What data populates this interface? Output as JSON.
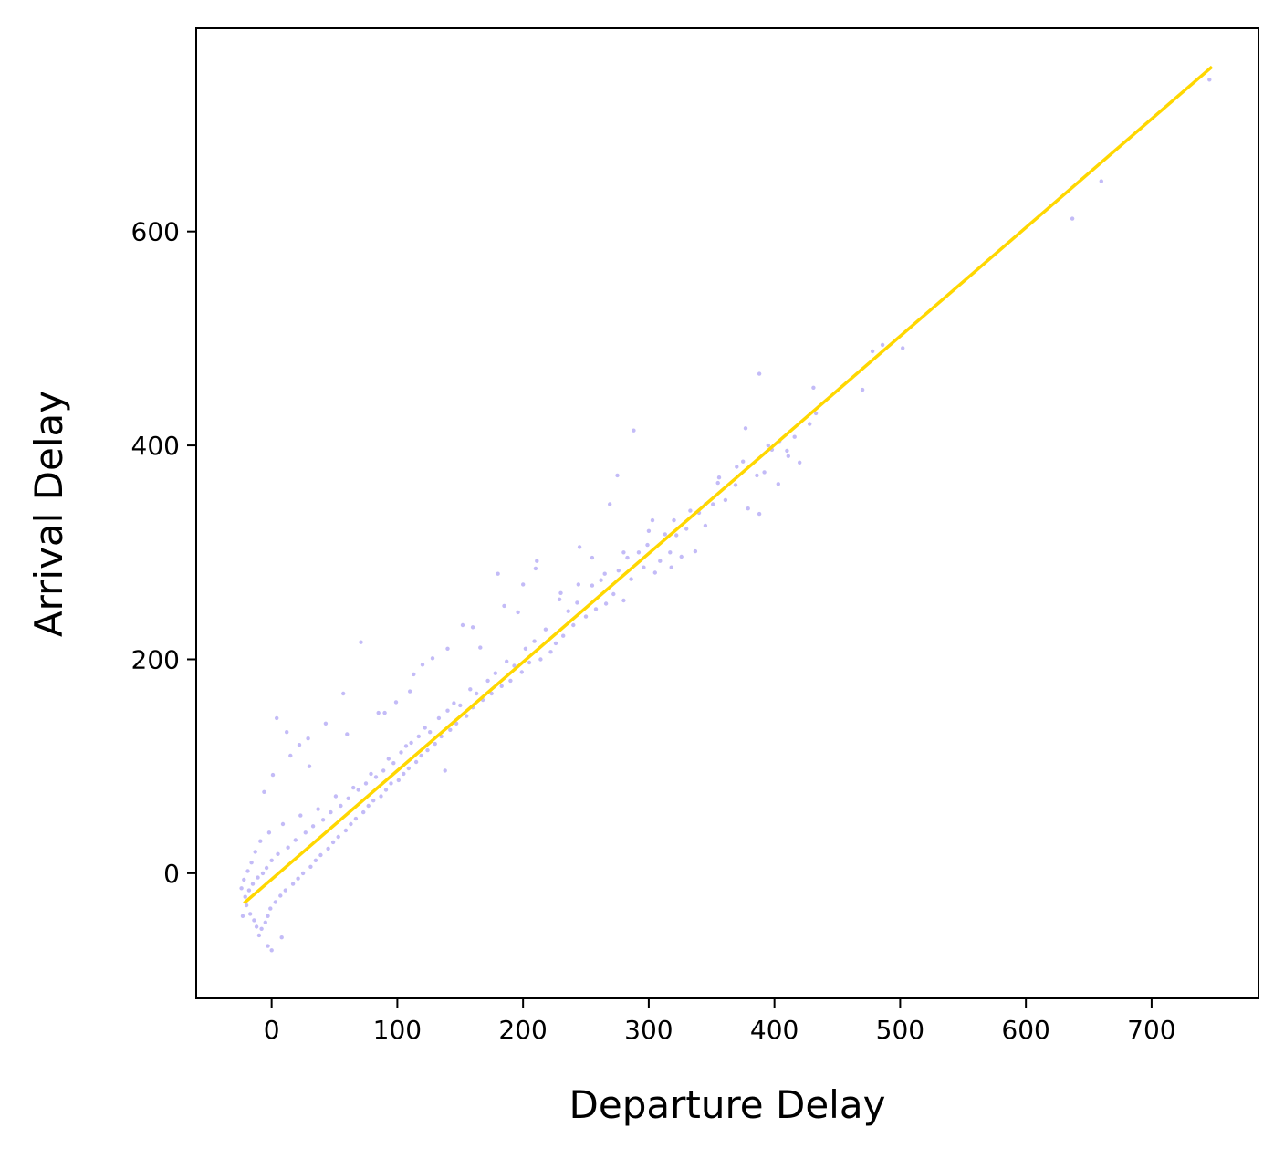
{
  "colors": {
    "background": "#ffffff",
    "axes": "#000000",
    "points": "#7b68ee",
    "fit_line": "#ffd700"
  },
  "chart_data": {
    "type": "scatter",
    "title": "",
    "xlabel": "Departure Delay",
    "ylabel": "Arrival Delay",
    "xlim": [
      -60,
      785
    ],
    "ylim": [
      -117,
      790
    ],
    "xticks": [
      0,
      100,
      200,
      300,
      400,
      500,
      600,
      700
    ],
    "yticks": [
      0,
      200,
      400,
      600
    ],
    "xtick_labels": [
      "0",
      "100",
      "200",
      "300",
      "400",
      "500",
      "600",
      "700"
    ],
    "ytick_labels": [
      "0",
      "200",
      "400",
      "600"
    ],
    "grid": false,
    "legend": "none",
    "series": [
      {
        "kind": "points",
        "marker_color": "#7b68ee",
        "opacity": 0.45,
        "points": [
          [
            746,
            742
          ],
          [
            660,
            647
          ],
          [
            637,
            612
          ],
          [
            502,
            491
          ],
          [
            486,
            494
          ],
          [
            478,
            488
          ],
          [
            470,
            452
          ],
          [
            433,
            430
          ],
          [
            431,
            454
          ],
          [
            420,
            384
          ],
          [
            416,
            408
          ],
          [
            411,
            390
          ],
          [
            404,
            404
          ],
          [
            403,
            364
          ],
          [
            398,
            396
          ],
          [
            392,
            375
          ],
          [
            388,
            467
          ],
          [
            388,
            336
          ],
          [
            386,
            372
          ],
          [
            379,
            341
          ],
          [
            377,
            416
          ],
          [
            375,
            385
          ],
          [
            369,
            363
          ],
          [
            361,
            349
          ],
          [
            356,
            370
          ],
          [
            351,
            345
          ],
          [
            345,
            325
          ],
          [
            340,
            337
          ],
          [
            337,
            301
          ],
          [
            333,
            339
          ],
          [
            330,
            322
          ],
          [
            326,
            296
          ],
          [
            322,
            316
          ],
          [
            318,
            286
          ],
          [
            317,
            300
          ],
          [
            313,
            317
          ],
          [
            309,
            292
          ],
          [
            305,
            281
          ],
          [
            303,
            330
          ],
          [
            299,
            307
          ],
          [
            296,
            286
          ],
          [
            292,
            300
          ],
          [
            288,
            414
          ],
          [
            286,
            275
          ],
          [
            283,
            295
          ],
          [
            280,
            255
          ],
          [
            276,
            283
          ],
          [
            275,
            372
          ],
          [
            272,
            261
          ],
          [
            269,
            345
          ],
          [
            266,
            252
          ],
          [
            262,
            274
          ],
          [
            258,
            247
          ],
          [
            255,
            269
          ],
          [
            250,
            240
          ],
          [
            245,
            305
          ],
          [
            243,
            253
          ],
          [
            240,
            232
          ],
          [
            236,
            245
          ],
          [
            232,
            222
          ],
          [
            229,
            256
          ],
          [
            226,
            215
          ],
          [
            222,
            207
          ],
          [
            218,
            228
          ],
          [
            214,
            200
          ],
          [
            211,
            292
          ],
          [
            209,
            217
          ],
          [
            205,
            197
          ],
          [
            202,
            210
          ],
          [
            199,
            188
          ],
          [
            196,
            244
          ],
          [
            193,
            194
          ],
          [
            190,
            180
          ],
          [
            187,
            198
          ],
          [
            183,
            175
          ],
          [
            180,
            280
          ],
          [
            178,
            187
          ],
          [
            175,
            168
          ],
          [
            172,
            180
          ],
          [
            168,
            162
          ],
          [
            166,
            211
          ],
          [
            163,
            168
          ],
          [
            160,
            155
          ],
          [
            158,
            172
          ],
          [
            155,
            147
          ],
          [
            152,
            232
          ],
          [
            150,
            157
          ],
          [
            147,
            140
          ],
          [
            145,
            159
          ],
          [
            142,
            134
          ],
          [
            140,
            152
          ],
          [
            138,
            96
          ],
          [
            135,
            128
          ],
          [
            133,
            145
          ],
          [
            130,
            121
          ],
          [
            128,
            201
          ],
          [
            126,
            132
          ],
          [
            124,
            115
          ],
          [
            122,
            136
          ],
          [
            119,
            110
          ],
          [
            117,
            128
          ],
          [
            115,
            104
          ],
          [
            113,
            186
          ],
          [
            111,
            122
          ],
          [
            109,
            98
          ],
          [
            107,
            119
          ],
          [
            105,
            93
          ],
          [
            103,
            113
          ],
          [
            101,
            87
          ],
          [
            99,
            160
          ],
          [
            97,
            103
          ],
          [
            95,
            84
          ],
          [
            93,
            107
          ],
          [
            91,
            78
          ],
          [
            89,
            96
          ],
          [
            87,
            72
          ],
          [
            85,
            150
          ],
          [
            83,
            90
          ],
          [
            81,
            68
          ],
          [
            79,
            93
          ],
          [
            77,
            63
          ],
          [
            75,
            84
          ],
          [
            73,
            57
          ],
          [
            71,
            216
          ],
          [
            69,
            78
          ],
          [
            67,
            51
          ],
          [
            65,
            80
          ],
          [
            63,
            46
          ],
          [
            61,
            70
          ],
          [
            59,
            40
          ],
          [
            57,
            168
          ],
          [
            55,
            63
          ],
          [
            53,
            34
          ],
          [
            51,
            72
          ],
          [
            49,
            29
          ],
          [
            47,
            57
          ],
          [
            45,
            23
          ],
          [
            43,
            140
          ],
          [
            41,
            50
          ],
          [
            39,
            17
          ],
          [
            37,
            60
          ],
          [
            35,
            12
          ],
          [
            33,
            44
          ],
          [
            31,
            6
          ],
          [
            29,
            126
          ],
          [
            27,
            38
          ],
          [
            25,
            0
          ],
          [
            23,
            54
          ],
          [
            21,
            -5
          ],
          [
            19,
            31
          ],
          [
            17,
            -10
          ],
          [
            15,
            110
          ],
          [
            13,
            24
          ],
          [
            11,
            -16
          ],
          [
            9,
            46
          ],
          [
            7,
            -21
          ],
          [
            5,
            18
          ],
          [
            3,
            -27
          ],
          [
            1,
            92
          ],
          [
            0,
            12
          ],
          [
            -1,
            -33
          ],
          [
            -2,
            38
          ],
          [
            -3,
            -40
          ],
          [
            -4,
            5
          ],
          [
            -5,
            -46
          ],
          [
            -6,
            76
          ],
          [
            -7,
            0
          ],
          [
            -8,
            -52
          ],
          [
            -9,
            30
          ],
          [
            -10,
            -58
          ],
          [
            -11,
            -4
          ],
          [
            -12,
            -50
          ],
          [
            -13,
            20
          ],
          [
            -14,
            -44
          ],
          [
            -15,
            -10
          ],
          [
            -16,
            10
          ],
          [
            -17,
            -38
          ],
          [
            -18,
            -16
          ],
          [
            -19,
            2
          ],
          [
            -20,
            -30
          ],
          [
            -21,
            -22
          ],
          [
            -22,
            -6
          ],
          [
            -23,
            -40
          ],
          [
            -24,
            -14
          ],
          [
            4,
            145
          ],
          [
            12,
            132
          ],
          [
            22,
            120
          ],
          [
            -3,
            -68
          ],
          [
            0,
            -72
          ],
          [
            8,
            -60
          ],
          [
            30,
            100
          ],
          [
            60,
            130
          ],
          [
            90,
            150
          ],
          [
            110,
            170
          ],
          [
            120,
            195
          ],
          [
            140,
            210
          ],
          [
            160,
            230
          ],
          [
            185,
            250
          ],
          [
            200,
            270
          ],
          [
            210,
            285
          ],
          [
            230,
            262
          ],
          [
            244,
            270
          ],
          [
            255,
            295
          ],
          [
            265,
            280
          ],
          [
            280,
            300
          ],
          [
            300,
            320
          ],
          [
            320,
            330
          ],
          [
            345,
            345
          ],
          [
            355,
            365
          ],
          [
            370,
            380
          ],
          [
            395,
            400
          ],
          [
            410,
            395
          ],
          [
            428,
            420
          ]
        ]
      },
      {
        "kind": "line",
        "color": "#ffd700",
        "x": [
          -22,
          748
        ],
        "y": [
          -28,
          754
        ]
      }
    ]
  }
}
